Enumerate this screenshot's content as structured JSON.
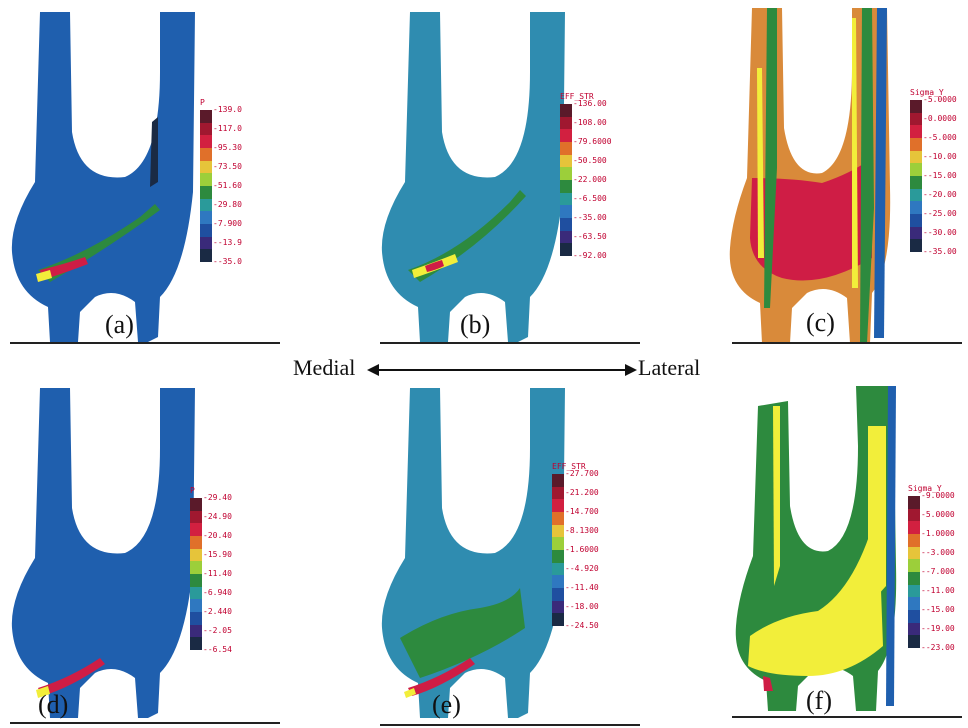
{
  "direction": {
    "left": "Medial",
    "right": "Lateral"
  },
  "panels": [
    {
      "label": "(a)",
      "title": "P",
      "ticks": [
        "139.0",
        "117.0",
        "95.30",
        "73.50",
        "51.60",
        "29.80",
        "7.900",
        "-13.9",
        "-35.0"
      ]
    },
    {
      "label": "(b)",
      "title": "EFF_STR",
      "ticks": [
        "136.00",
        "108.00",
        "79.6000",
        "50.500",
        "22.000",
        "-6.500",
        "-35.00",
        "-63.50",
        "-92.00"
      ]
    },
    {
      "label": "(c)",
      "title": "Sigma_Y",
      "ticks": [
        "5.0000",
        "0.0000",
        "-5.000",
        "-10.00",
        "-15.00",
        "-20.00",
        "-25.00",
        "-30.00",
        "-35.00"
      ]
    },
    {
      "label": "(d)",
      "title": "P",
      "ticks": [
        "29.40",
        "24.90",
        "20.40",
        "15.90",
        "11.40",
        "6.940",
        "2.440",
        "-2.05",
        "-6.54"
      ]
    },
    {
      "label": "(e)",
      "title": "EFF_STR",
      "ticks": [
        "27.700",
        "21.200",
        "14.700",
        "8.1300",
        "1.6000",
        "-4.920",
        "-11.40",
        "-18.00",
        "-24.50"
      ]
    },
    {
      "label": "(f)",
      "title": "Sigma_Y",
      "ticks": [
        "9.0000",
        "5.0000",
        "1.0000",
        "-3.000",
        "-7.000",
        "-11.00",
        "-15.00",
        "-19.00",
        "-23.00"
      ]
    }
  ],
  "colors": {
    "blue": "#1f5fae",
    "teal": "#2f8cb0",
    "green": "#2d8a3e",
    "yellow": "#f2ee3a",
    "red": "#cf1d45",
    "orange": "#d98a3a",
    "dark": "#1a2a44"
  }
}
